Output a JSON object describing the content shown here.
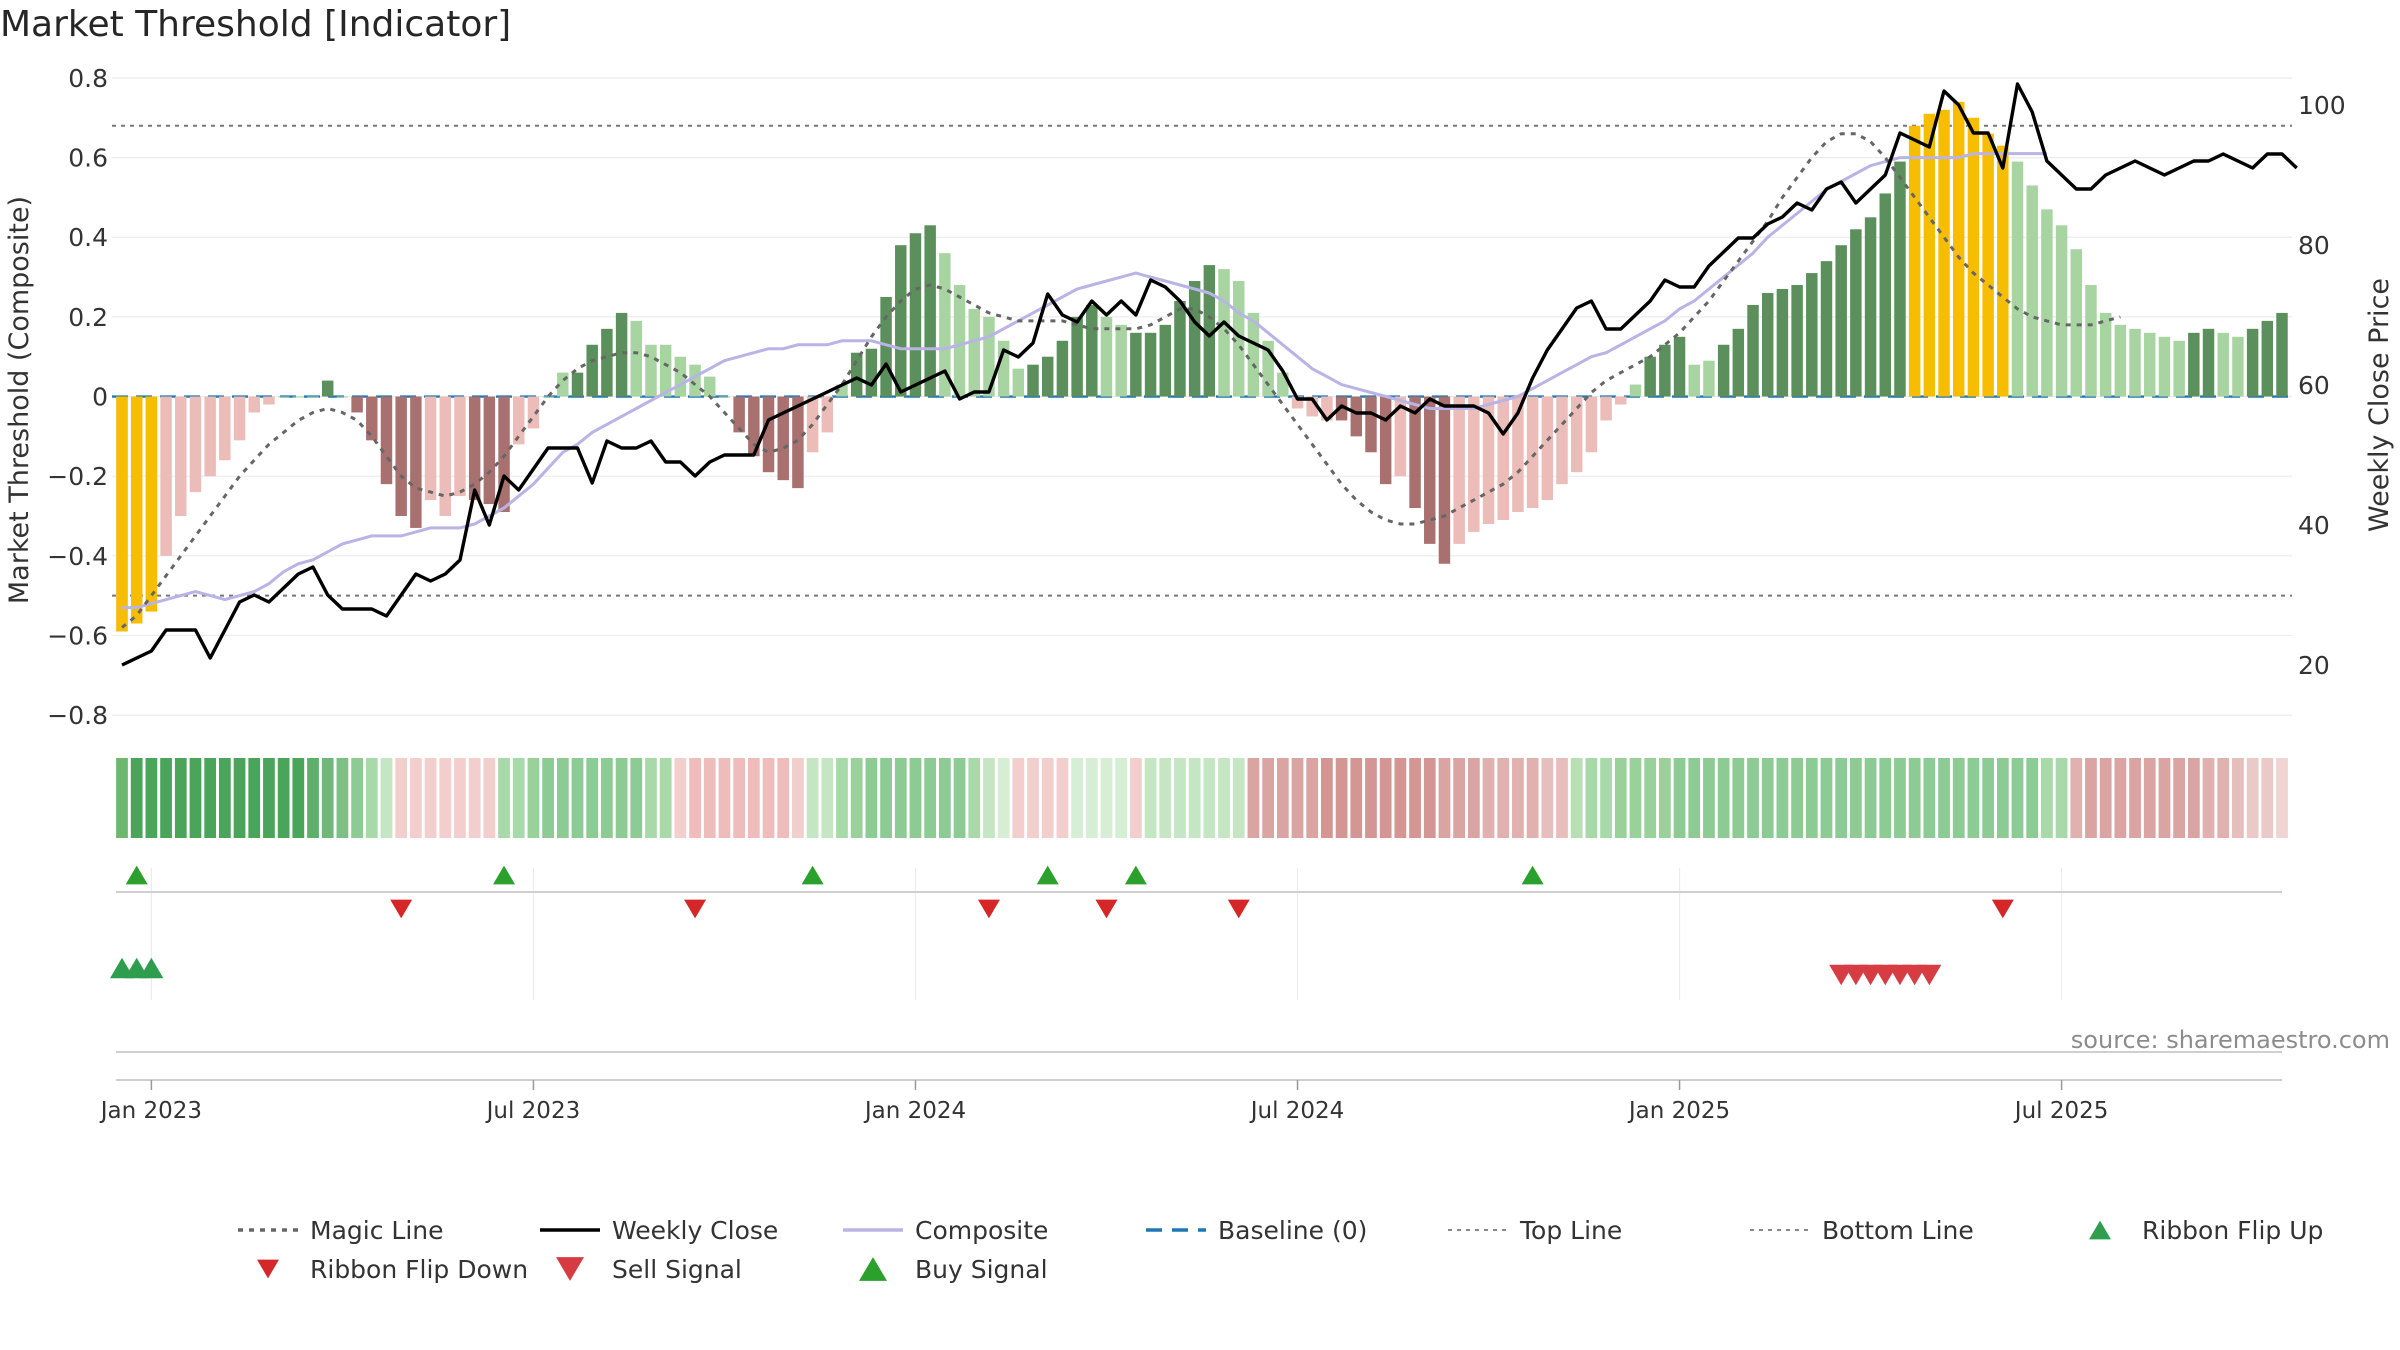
{
  "chart_data": {
    "type": "bar",
    "title": "Market Threshold [Indicator]",
    "ylabel": "Market Threshold (Composite)",
    "y2label": "Weekly Close Price",
    "source": "source: sharemaestro.com",
    "ylim": [
      -0.85,
      0.82
    ],
    "y2lim": [
      10,
      105
    ],
    "y_ticks": [
      -0.8,
      -0.6,
      -0.4,
      -0.2,
      0,
      0.2,
      0.4,
      0.6,
      0.8
    ],
    "y_tick_labels": [
      "−0.8",
      "−0.6",
      "−0.4",
      "−0.2",
      "0",
      "0.2",
      "0.4",
      "0.6",
      "0.8"
    ],
    "y2_ticks": [
      20,
      40,
      60,
      80,
      100
    ],
    "x_tick_labels": [
      "Jan 2023",
      "Jul 2023",
      "Jan 2024",
      "Jul 2024",
      "Jan 2025",
      "Jul 2025"
    ],
    "x_tick_weeks": [
      2,
      28,
      54,
      80,
      106,
      132
    ],
    "start_date": "2022-12-19",
    "top_line": 0.68,
    "bottom_line": -0.5,
    "colors": {
      "up_strong": "#5b8f5b",
      "up_light": "#a8d4a2",
      "down_strong": "#a8716f",
      "down_light": "#ebbcb8",
      "extreme": "#f7bd00",
      "close": "#000000",
      "magic": "#666666",
      "composite": "#b9b3e6",
      "baseline": "#1f77b4",
      "buy": "#2ca02c",
      "sell": "#d62728",
      "flip_up": "#2e9e4e",
      "flip_down": "#d73c43"
    },
    "composite_bars": [
      -0.59,
      -0.57,
      -0.54,
      -0.4,
      -0.3,
      -0.24,
      -0.2,
      -0.16,
      -0.11,
      -0.04,
      -0.02,
      0,
      0,
      0,
      0.04,
      0,
      -0.04,
      -0.11,
      -0.22,
      -0.3,
      -0.33,
      -0.26,
      -0.3,
      -0.25,
      -0.26,
      -0.27,
      -0.29,
      -0.12,
      -0.08,
      0,
      0.06,
      0.06,
      0.13,
      0.17,
      0.21,
      0.19,
      0.13,
      0.13,
      0.1,
      0.08,
      0.05,
      0,
      -0.09,
      -0.15,
      -0.19,
      -0.21,
      -0.23,
      -0.14,
      -0.09,
      0.03,
      0.11,
      0.12,
      0.25,
      0.38,
      0.41,
      0.43,
      0.36,
      0.28,
      0.22,
      0.2,
      0.14,
      0.07,
      0.08,
      0.1,
      0.14,
      0.2,
      0.23,
      0.2,
      0.18,
      0.16,
      0.16,
      0.18,
      0.24,
      0.29,
      0.33,
      0.32,
      0.29,
      0.21,
      0.14,
      0.06,
      -0.03,
      -0.05,
      -0.06,
      -0.06,
      -0.1,
      -0.14,
      -0.22,
      -0.2,
      -0.28,
      -0.37,
      -0.42,
      -0.37,
      -0.34,
      -0.32,
      -0.31,
      -0.29,
      -0.28,
      -0.26,
      -0.22,
      -0.19,
      -0.14,
      -0.06,
      -0.02,
      0.03,
      0.1,
      0.13,
      0.15,
      0.08,
      0.09,
      0.13,
      0.17,
      0.23,
      0.26,
      0.27,
      0.28,
      0.31,
      0.34,
      0.38,
      0.42,
      0.45,
      0.51,
      0.59,
      0.68,
      0.71,
      0.72,
      0.74,
      0.7,
      0.66,
      0.63,
      0.59,
      0.53,
      0.47,
      0.43,
      0.37,
      0.28,
      0.21,
      0.18,
      0.17,
      0.16,
      0.15,
      0.14,
      0.16,
      0.17,
      0.16,
      0.15,
      0.17,
      0.19,
      0.21
    ],
    "bar_categories": [
      "down_light",
      "down_light",
      "down_light",
      "down_light",
      "down_light",
      "down_light",
      "down_light",
      "down_light",
      "down_light",
      "down_light",
      "down_light",
      "up_light",
      "up_light",
      "up_light",
      "up_strong",
      "up_light",
      "down_strong",
      "down_strong",
      "down_strong",
      "down_strong",
      "down_strong",
      "down_light",
      "down_light",
      "down_light",
      "down_strong",
      "down_strong",
      "down_strong",
      "down_light",
      "down_light",
      "up_light",
      "up_light",
      "up_strong",
      "up_strong",
      "up_strong",
      "up_strong",
      "up_light",
      "up_light",
      "up_light",
      "up_light",
      "up_light",
      "up_light",
      "up_light",
      "down_strong",
      "down_strong",
      "down_strong",
      "down_strong",
      "down_strong",
      "down_light",
      "down_light",
      "up_light",
      "up_strong",
      "up_strong",
      "up_strong",
      "up_strong",
      "up_strong",
      "up_strong",
      "up_light",
      "up_light",
      "up_light",
      "up_light",
      "up_light",
      "up_light",
      "up_strong",
      "up_strong",
      "up_strong",
      "up_strong",
      "up_strong",
      "up_light",
      "up_light",
      "up_strong",
      "up_strong",
      "up_strong",
      "up_strong",
      "up_strong",
      "up_strong",
      "up_light",
      "up_light",
      "up_light",
      "up_light",
      "up_light",
      "down_light",
      "down_light",
      "down_light",
      "down_strong",
      "down_strong",
      "down_strong",
      "down_strong",
      "down_light",
      "down_strong",
      "down_strong",
      "down_strong",
      "down_light",
      "down_light",
      "down_light",
      "down_light",
      "down_light",
      "down_light",
      "down_light",
      "down_light",
      "down_light",
      "down_light",
      "down_light",
      "down_light",
      "up_light",
      "up_strong",
      "up_strong",
      "up_strong",
      "up_light",
      "up_light",
      "up_strong",
      "up_strong",
      "up_strong",
      "up_strong",
      "up_strong",
      "up_strong",
      "up_strong",
      "up_strong",
      "up_strong",
      "up_strong",
      "up_strong",
      "up_strong",
      "up_strong",
      "extreme",
      "extreme",
      "extreme",
      "extreme",
      "extreme",
      "extreme",
      "extreme",
      "up_light",
      "up_light",
      "up_light",
      "up_light",
      "up_light",
      "up_light",
      "up_light",
      "up_light",
      "up_light",
      "up_light",
      "up_light",
      "up_light",
      "up_strong",
      "up_strong",
      "up_light",
      "up_light",
      "up_strong",
      "up_strong",
      "up_strong"
    ],
    "extreme_first_bars": [
      -0.59,
      -0.57,
      -0.54
    ],
    "weekly_close": [
      20,
      21,
      22,
      25,
      25,
      25,
      21,
      25,
      29,
      30,
      29,
      31,
      33,
      34,
      30,
      28,
      28,
      28,
      27,
      30,
      33,
      32,
      33,
      35,
      45,
      40,
      47,
      45,
      48,
      51,
      51,
      51,
      46,
      52,
      51,
      51,
      52,
      49,
      49,
      47,
      49,
      50,
      50,
      50,
      55,
      56,
      57,
      58,
      59,
      60,
      61,
      60,
      63,
      59,
      60,
      61,
      62,
      58,
      59,
      59,
      65,
      64,
      66,
      73,
      70,
      69,
      72,
      70,
      72,
      70,
      75,
      74,
      72,
      69,
      67,
      69,
      67,
      66,
      65,
      62,
      58,
      58,
      55,
      57,
      56,
      56,
      55,
      57,
      56,
      58,
      57,
      57,
      57,
      56,
      53,
      56,
      61,
      65,
      68,
      71,
      72,
      68,
      68,
      70,
      72,
      75,
      74,
      74,
      77,
      79,
      81,
      81,
      83,
      84,
      86,
      85,
      88,
      89,
      86,
      88,
      90,
      96,
      95,
      94,
      102,
      100,
      96,
      96,
      91,
      103,
      99,
      92,
      90,
      88,
      88,
      90,
      91,
      92,
      91,
      90,
      91,
      92,
      92,
      93,
      92,
      91,
      93,
      93,
      91
    ],
    "magic_line": [
      -0.58,
      -0.55,
      -0.5,
      -0.45,
      -0.4,
      -0.35,
      -0.3,
      -0.25,
      -0.2,
      -0.16,
      -0.12,
      -0.09,
      -0.06,
      -0.04,
      -0.03,
      -0.04,
      -0.06,
      -0.1,
      -0.15,
      -0.2,
      -0.23,
      -0.24,
      -0.25,
      -0.24,
      -0.22,
      -0.19,
      -0.15,
      -0.1,
      -0.05,
      0,
      0.04,
      0.07,
      0.09,
      0.1,
      0.11,
      0.11,
      0.1,
      0.08,
      0.06,
      0.03,
      0,
      -0.04,
      -0.08,
      -0.12,
      -0.14,
      -0.13,
      -0.11,
      -0.07,
      -0.02,
      0.03,
      0.09,
      0.15,
      0.2,
      0.24,
      0.27,
      0.28,
      0.27,
      0.25,
      0.23,
      0.21,
      0.2,
      0.19,
      0.19,
      0.19,
      0.19,
      0.18,
      0.17,
      0.17,
      0.17,
      0.17,
      0.18,
      0.2,
      0.22,
      0.22,
      0.2,
      0.17,
      0.13,
      0.08,
      0.03,
      -0.02,
      -0.07,
      -0.12,
      -0.17,
      -0.22,
      -0.26,
      -0.29,
      -0.31,
      -0.32,
      -0.32,
      -0.31,
      -0.3,
      -0.28,
      -0.26,
      -0.24,
      -0.22,
      -0.19,
      -0.15,
      -0.11,
      -0.07,
      -0.03,
      0.01,
      0.04,
      0.06,
      0.08,
      0.1,
      0.13,
      0.16,
      0.2,
      0.24,
      0.29,
      0.34,
      0.39,
      0.44,
      0.5,
      0.55,
      0.6,
      0.64,
      0.66,
      0.66,
      0.64,
      0.6,
      0.55,
      0.5,
      0.45,
      0.4,
      0.35,
      0.31,
      0.28,
      0.25,
      0.22,
      0.2,
      0.19,
      0.18,
      0.18,
      0.18,
      0.19,
      0.2
    ],
    "composite_line": [
      -0.53,
      -0.53,
      -0.52,
      -0.51,
      -0.5,
      -0.49,
      -0.5,
      -0.51,
      -0.5,
      -0.49,
      -0.47,
      -0.44,
      -0.42,
      -0.41,
      -0.39,
      -0.37,
      -0.36,
      -0.35,
      -0.35,
      -0.35,
      -0.34,
      -0.33,
      -0.33,
      -0.33,
      -0.32,
      -0.3,
      -0.28,
      -0.25,
      -0.22,
      -0.18,
      -0.14,
      -0.12,
      -0.09,
      -0.07,
      -0.05,
      -0.03,
      -0.01,
      0.01,
      0.03,
      0.05,
      0.07,
      0.09,
      0.1,
      0.11,
      0.12,
      0.12,
      0.13,
      0.13,
      0.13,
      0.14,
      0.14,
      0.14,
      0.13,
      0.12,
      0.12,
      0.12,
      0.12,
      0.13,
      0.14,
      0.15,
      0.17,
      0.19,
      0.21,
      0.23,
      0.25,
      0.27,
      0.28,
      0.29,
      0.3,
      0.31,
      0.3,
      0.29,
      0.28,
      0.27,
      0.26,
      0.24,
      0.21,
      0.19,
      0.16,
      0.13,
      0.1,
      0.07,
      0.05,
      0.03,
      0.02,
      0.01,
      0,
      -0.01,
      -0.02,
      -0.03,
      -0.03,
      -0.03,
      -0.03,
      -0.02,
      -0.01,
      0,
      0.02,
      0.04,
      0.06,
      0.08,
      0.1,
      0.11,
      0.13,
      0.15,
      0.17,
      0.19,
      0.22,
      0.24,
      0.27,
      0.3,
      0.33,
      0.36,
      0.4,
      0.43,
      0.46,
      0.49,
      0.52,
      0.54,
      0.56,
      0.58,
      0.59,
      0.6,
      0.6,
      0.6,
      0.6,
      0.6,
      0.61,
      0.61,
      0.61,
      0.61,
      0.61,
      0.61
    ],
    "ribbon": [
      [
        "#64b464",
        0.95
      ],
      [
        "#4aa55a",
        1
      ],
      [
        "#4aa55a",
        1
      ],
      [
        "#4aa55a",
        1
      ],
      [
        "#4aa55a",
        1
      ],
      [
        "#4aa55a",
        1
      ],
      [
        "#4aa55a",
        1
      ],
      [
        "#4aa55a",
        1
      ],
      [
        "#4aa55a",
        1
      ],
      [
        "#4aa55a",
        1
      ],
      [
        "#4aa55a",
        1
      ],
      [
        "#4aa55a",
        1
      ],
      [
        "#4aa55a",
        1
      ],
      [
        "#5cb06a",
        1
      ],
      [
        "#6fb87a",
        1
      ],
      [
        "#7cc085",
        1
      ],
      [
        "#8ccb93",
        1
      ],
      [
        "#a8d9a8",
        1
      ],
      [
        "#c5e6c2",
        1
      ],
      [
        "#f2cfcd",
        1
      ],
      [
        "#f2cfcd",
        1
      ],
      [
        "#f2cfcd",
        1
      ],
      [
        "#f2cfcd",
        1
      ],
      [
        "#f2cfcd",
        1
      ],
      [
        "#f2cfcd",
        1
      ],
      [
        "#f2cfcd",
        1
      ],
      [
        "#a8d9a8",
        1
      ],
      [
        "#a8d9a8",
        1
      ],
      [
        "#9ad19b",
        1
      ],
      [
        "#8ccb93",
        1
      ],
      [
        "#8ccb93",
        1
      ],
      [
        "#8ccb93",
        1
      ],
      [
        "#8ccb93",
        1
      ],
      [
        "#8ccb93",
        1
      ],
      [
        "#8ccb93",
        1
      ],
      [
        "#8ccb93",
        1
      ],
      [
        "#a8d9a8",
        1
      ],
      [
        "#a8d9a8",
        1
      ],
      [
        "#f2cfcd",
        1
      ],
      [
        "#eebdbb",
        1
      ],
      [
        "#eebdbb",
        1
      ],
      [
        "#eebdbb",
        1
      ],
      [
        "#eebdbb",
        1
      ],
      [
        "#eebdbb",
        1
      ],
      [
        "#eebdbb",
        1
      ],
      [
        "#eebdbb",
        1
      ],
      [
        "#f2cfcd",
        1
      ],
      [
        "#c5e6c2",
        1
      ],
      [
        "#c5e6c2",
        1
      ],
      [
        "#a8d9a8",
        1
      ],
      [
        "#9ad19b",
        1
      ],
      [
        "#8ccb93",
        1
      ],
      [
        "#8ccb93",
        1
      ],
      [
        "#8ccb93",
        1
      ],
      [
        "#8ccb93",
        1
      ],
      [
        "#8ccb93",
        1
      ],
      [
        "#8ccb93",
        1
      ],
      [
        "#8ccb93",
        1
      ],
      [
        "#a8d9a8",
        1
      ],
      [
        "#c5e6c2",
        1
      ],
      [
        "#d6eed4",
        1
      ],
      [
        "#f2cfcd",
        1
      ],
      [
        "#f2cfcd",
        1
      ],
      [
        "#f2cfcd",
        1
      ],
      [
        "#f2cfcd",
        1
      ],
      [
        "#d6eed4",
        1
      ],
      [
        "#d6eed4",
        1
      ],
      [
        "#d6eed4",
        1
      ],
      [
        "#d6eed4",
        1
      ],
      [
        "#f2cfcd",
        1
      ],
      [
        "#c5e6c2",
        1
      ],
      [
        "#c5e6c2",
        1
      ],
      [
        "#c5e6c2",
        1
      ],
      [
        "#c5e6c2",
        1
      ],
      [
        "#c5e6c2",
        1
      ],
      [
        "#c5e6c2",
        1
      ],
      [
        "#c5e6c2",
        1
      ],
      [
        "#d9a4a1",
        1
      ],
      [
        "#d9a4a1",
        1
      ],
      [
        "#d9a4a1",
        1
      ],
      [
        "#d9a4a1",
        1
      ],
      [
        "#d9a4a1",
        1
      ],
      [
        "#d39693",
        1
      ],
      [
        "#d39693",
        1
      ],
      [
        "#d39693",
        1
      ],
      [
        "#d39693",
        1
      ],
      [
        "#d39693",
        1
      ],
      [
        "#d39693",
        1
      ],
      [
        "#d39693",
        1
      ],
      [
        "#d39693",
        1
      ],
      [
        "#d9a4a1",
        1
      ],
      [
        "#d9a4a1",
        1
      ],
      [
        "#d9a4a1",
        1
      ],
      [
        "#e0b1ae",
        1
      ],
      [
        "#e0b1ae",
        1
      ],
      [
        "#e0b1ae",
        1
      ],
      [
        "#e0b1ae",
        1
      ],
      [
        "#e6bebc",
        1
      ],
      [
        "#e6bebc",
        1
      ],
      [
        "#b8dfb4",
        1
      ],
      [
        "#a8d9a8",
        1
      ],
      [
        "#a8d9a8",
        1
      ],
      [
        "#9ad19b",
        1
      ],
      [
        "#9ad19b",
        1
      ],
      [
        "#9ad19b",
        1
      ],
      [
        "#9ad19b",
        1
      ],
      [
        "#8ccb93",
        1
      ],
      [
        "#8ccb93",
        1
      ],
      [
        "#8ccb93",
        1
      ],
      [
        "#8ccb93",
        1
      ],
      [
        "#8ccb93",
        1
      ],
      [
        "#8ccb93",
        1
      ],
      [
        "#8ccb93",
        1
      ],
      [
        "#8ccb93",
        1
      ],
      [
        "#8ccb93",
        1
      ],
      [
        "#8ccb93",
        1
      ],
      [
        "#8ccb93",
        1
      ],
      [
        "#8ccb93",
        1
      ],
      [
        "#8ccb93",
        1
      ],
      [
        "#8ccb93",
        1
      ],
      [
        "#8ccb93",
        1
      ],
      [
        "#8ccb93",
        1
      ],
      [
        "#8ccb93",
        1
      ],
      [
        "#8ccb93",
        1
      ],
      [
        "#8ccb93",
        1
      ],
      [
        "#8ccb93",
        1
      ],
      [
        "#8ccb93",
        1
      ],
      [
        "#8ccb93",
        1
      ],
      [
        "#8ccb93",
        1
      ],
      [
        "#8ccb93",
        1
      ],
      [
        "#8ccb93",
        1
      ],
      [
        "#a8d9a8",
        1
      ],
      [
        "#a8d9a8",
        1
      ],
      [
        "#e0b1ae",
        1
      ],
      [
        "#d9a4a1",
        1
      ],
      [
        "#d9a4a1",
        1
      ],
      [
        "#d9a4a1",
        1
      ],
      [
        "#d9a4a1",
        1
      ],
      [
        "#d9a4a1",
        1
      ],
      [
        "#d9a4a1",
        1
      ],
      [
        "#d9a4a1",
        1
      ],
      [
        "#d9a4a1",
        1
      ],
      [
        "#e0b1ae",
        1
      ],
      [
        "#e0b1ae",
        1
      ],
      [
        "#e6bebc",
        1
      ],
      [
        "#ebc9c7",
        1
      ],
      [
        "#ebc9c7",
        1
      ],
      [
        "#f0d4d2",
        1
      ]
    ],
    "buy_signals": [
      1,
      26,
      47,
      63,
      69,
      96
    ],
    "sell_signals": [
      19,
      39,
      59,
      67,
      76,
      128
    ],
    "ribbon_flip_up": [
      0,
      1,
      2
    ],
    "ribbon_flip_down": [
      117,
      118,
      119,
      120,
      121,
      122,
      123
    ],
    "legend": [
      {
        "label": "Magic Line",
        "style": "dotted",
        "color": "#666666"
      },
      {
        "label": "Weekly Close",
        "style": "solid",
        "color": "#000000"
      },
      {
        "label": "Composite",
        "style": "solid",
        "color": "#b9b3e6"
      },
      {
        "label": "Baseline (0)",
        "style": "dashed",
        "color": "#1f77b4"
      },
      {
        "label": "Top Line",
        "style": "dotted-light",
        "color": "#888888"
      },
      {
        "label": "Bottom Line",
        "style": "dotted-light",
        "color": "#888888"
      },
      {
        "label": "Ribbon Flip Up",
        "style": "tri-up",
        "color": "#2e9e4e"
      },
      {
        "label": "Ribbon Flip Down",
        "style": "tri-down",
        "color": "#d62728"
      },
      {
        "label": "Sell Signal",
        "style": "tri-down-big",
        "color": "#d73c43"
      },
      {
        "label": "Buy Signal",
        "style": "tri-up-big",
        "color": "#2ca02c"
      }
    ]
  }
}
